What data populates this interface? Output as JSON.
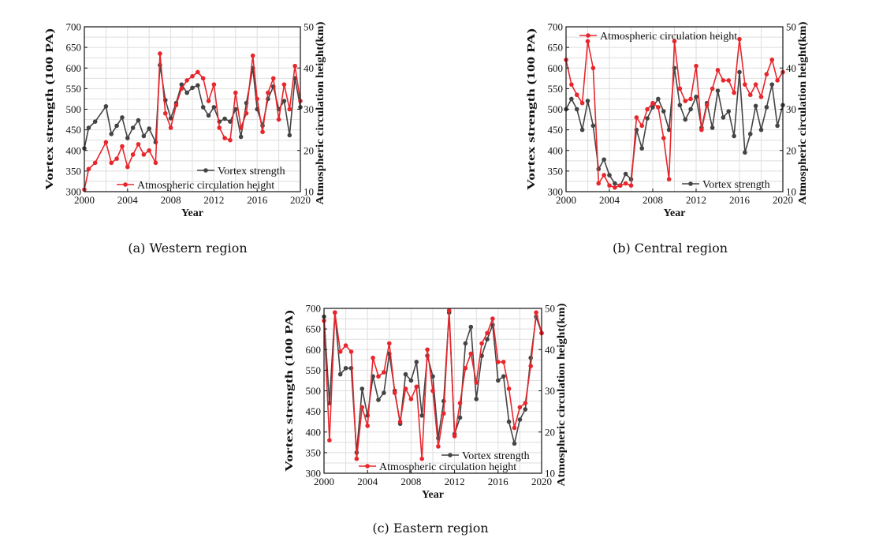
{
  "colors": {
    "vortex": "#444444",
    "circulation": "#e8262c",
    "grid": "#dedede",
    "axis": "#111111"
  },
  "chart_data": [
    {
      "type": "line",
      "caption": "(a) Western region",
      "xlabel": "Year",
      "ylabel_left": "Vortex strength (100 PA)",
      "ylabel_right": "Atmospheric circulation height(km)",
      "xlim": [
        2000,
        2020
      ],
      "ylim_left": [
        300,
        700
      ],
      "ylim_right": [
        10,
        50
      ],
      "x_ticks": [
        "2000",
        "2004",
        "2008",
        "2012",
        "2016",
        "2020"
      ],
      "y_left_ticks": [
        "300",
        "350",
        "400",
        "450",
        "500",
        "550",
        "600",
        "650",
        "700"
      ],
      "y_right_ticks": [
        "10",
        "20",
        "30",
        "40",
        "50"
      ],
      "legend_position": "bottom-right",
      "legend_order": [
        "Vortex strength",
        "Atmospheric circulation height"
      ],
      "series": [
        {
          "name": "Vortex strength",
          "axis": "left",
          "x": [
            2000,
            2000.4,
            2001,
            2002,
            2002.5,
            2003,
            2003.5,
            2004,
            2004.5,
            2005,
            2005.5,
            2006,
            2006.6,
            2007,
            2007.5,
            2008,
            2008.5,
            2009,
            2009.5,
            2010,
            2010.5,
            2011,
            2011.5,
            2012,
            2012.5,
            2013,
            2013.5,
            2014,
            2014.5,
            2015,
            2015.6,
            2016,
            2016.5,
            2017,
            2017.5,
            2018,
            2018.5,
            2019,
            2019.5,
            2020
          ],
          "values": [
            405,
            455,
            470,
            507,
            440,
            460,
            480,
            430,
            455,
            473,
            435,
            453,
            420,
            607,
            522,
            478,
            515,
            560,
            540,
            552,
            558,
            505,
            485,
            505,
            470,
            477,
            470,
            500,
            433,
            515,
            600,
            500,
            460,
            525,
            555,
            500,
            520,
            437,
            575,
            505
          ]
        },
        {
          "name": "Atmospheric circulation height",
          "axis": "right",
          "x": [
            2000,
            2000.4,
            2001,
            2002,
            2002.5,
            2003,
            2003.5,
            2004,
            2004.5,
            2005,
            2005.5,
            2006,
            2006.6,
            2007,
            2007.5,
            2008,
            2008.5,
            2009,
            2009.5,
            2010,
            2010.5,
            2011,
            2011.5,
            2012,
            2012.5,
            2013,
            2013.5,
            2014,
            2014.5,
            2015,
            2015.6,
            2016,
            2016.5,
            2017,
            2017.5,
            2018,
            2018.5,
            2019,
            2019.5,
            2020
          ],
          "values": [
            10.5,
            15.5,
            17,
            22,
            17,
            18,
            21,
            16,
            19,
            21.5,
            19,
            20,
            17,
            43.5,
            29,
            25.5,
            31,
            35,
            37,
            38,
            39,
            37.5,
            32,
            36,
            25.5,
            23,
            22.5,
            34,
            25.5,
            29,
            43,
            32.5,
            24.5,
            34,
            37.5,
            27.5,
            36,
            30,
            40.5,
            32
          ]
        }
      ]
    },
    {
      "type": "line",
      "caption": "(b) Central region",
      "xlabel": "Year",
      "ylabel_left": "Vortex strength (100 PA)",
      "ylabel_right": "Atmospheric circulation height(km)",
      "xlim": [
        2000,
        2020
      ],
      "ylim_left": [
        300,
        700
      ],
      "ylim_right": [
        10,
        50
      ],
      "x_ticks": [
        "2000",
        "2004",
        "2008",
        "2012",
        "2016",
        "2020"
      ],
      "y_left_ticks": [
        "300",
        "350",
        "400",
        "450",
        "500",
        "550",
        "600",
        "650",
        "700"
      ],
      "y_right_ticks": [
        "10",
        "20",
        "30",
        "40",
        "50"
      ],
      "legend_position": "top-left and bottom-right",
      "legend_order": [
        "Atmospheric circulation height",
        "Vortex strength"
      ],
      "series": [
        {
          "name": "Vortex strength",
          "axis": "left",
          "x": [
            2000,
            2000.5,
            2001,
            2001.5,
            2002,
            2002.5,
            2003,
            2003.5,
            2004,
            2004.5,
            2005,
            2005.5,
            2006,
            2006.5,
            2007,
            2007.5,
            2008,
            2008.5,
            2009,
            2009.5,
            2010,
            2010.5,
            2011,
            2011.5,
            2012,
            2012.5,
            2013,
            2013.5,
            2014,
            2014.5,
            2015,
            2015.5,
            2016,
            2016.5,
            2017,
            2017.5,
            2018,
            2018.5,
            2019,
            2019.5,
            2020
          ],
          "values": [
            500,
            525,
            500,
            450,
            520,
            460,
            355,
            378,
            340,
            320,
            315,
            343,
            330,
            450,
            405,
            478,
            505,
            525,
            495,
            450,
            600,
            510,
            475,
            500,
            530,
            455,
            515,
            455,
            545,
            480,
            495,
            435,
            590,
            395,
            440,
            508,
            450,
            505,
            560,
            460,
            510
          ]
        },
        {
          "name": "Atmospheric circulation height",
          "axis": "right",
          "x": [
            2000,
            2000.5,
            2001,
            2001.5,
            2002,
            2002.5,
            2003,
            2003.5,
            2004,
            2004.5,
            2005,
            2005.5,
            2006,
            2006.5,
            2007,
            2007.5,
            2008,
            2008.5,
            2009,
            2009.5,
            2010,
            2010.5,
            2011,
            2011.5,
            2012,
            2012.5,
            2013,
            2013.5,
            2014,
            2014.5,
            2015,
            2015.5,
            2016,
            2016.5,
            2017,
            2017.5,
            2018,
            2018.5,
            2019,
            2019.5,
            2020
          ],
          "values": [
            42,
            36,
            33.5,
            31.5,
            46.5,
            40,
            12,
            14,
            11.5,
            11,
            11.5,
            12,
            11.5,
            28,
            26,
            30,
            31.5,
            30.5,
            23,
            13,
            46.5,
            35,
            32,
            32.5,
            40.5,
            25,
            31,
            35,
            39.5,
            37,
            37,
            34,
            47,
            36,
            33.5,
            36,
            33,
            38.5,
            42,
            37,
            39
          ]
        }
      ]
    },
    {
      "type": "line",
      "caption": "(c) Eastern region",
      "xlabel": "Year",
      "ylabel_left": "Vortex strength (100 PA)",
      "ylabel_right": "Atmospheric circulation height(km)",
      "xlim": [
        2000,
        2020
      ],
      "ylim_left": [
        300,
        700
      ],
      "ylim_right": [
        10,
        50
      ],
      "x_ticks": [
        "2000",
        "2004",
        "2008",
        "2012",
        "2016",
        "2020"
      ],
      "y_left_ticks": [
        "300",
        "350",
        "400",
        "450",
        "500",
        "550",
        "600",
        "650",
        "700"
      ],
      "y_right_ticks": [
        "10",
        "20",
        "30",
        "40",
        "50"
      ],
      "legend_position": "bottom-right",
      "legend_order": [
        "Vortex strength",
        "Atmospheric circulation height"
      ],
      "series": [
        {
          "name": "Vortex strength",
          "axis": "left",
          "x": [
            2000,
            2000.5,
            2001,
            2001.5,
            2002,
            2002.5,
            2003,
            2003.5,
            2004,
            2004.5,
            2005,
            2005.5,
            2006,
            2006.5,
            2007,
            2007.5,
            2008,
            2008.5,
            2009,
            2009.5,
            2010,
            2010.5,
            2011,
            2011.5,
            2012,
            2012.5,
            2013,
            2013.5,
            2014,
            2014.5,
            2015,
            2015.5,
            2016,
            2016.5,
            2017,
            2017.5,
            2018,
            2018.5,
            2019,
            2019.5,
            2020
          ],
          "values": [
            680,
            470,
            690,
            540,
            555,
            555,
            350,
            505,
            440,
            535,
            478,
            495,
            590,
            500,
            420,
            540,
            525,
            570,
            440,
            585,
            535,
            385,
            475,
            690,
            395,
            435,
            615,
            655,
            480,
            585,
            625,
            660,
            525,
            535,
            425,
            372,
            430,
            455,
            580,
            680,
            640
          ]
        },
        {
          "name": "Atmospheric circulation height",
          "axis": "right",
          "x": [
            2000,
            2000.5,
            2001,
            2001.5,
            2002,
            2002.5,
            2003,
            2003.5,
            2004,
            2004.5,
            2005,
            2005.5,
            2006,
            2006.5,
            2007,
            2007.5,
            2008,
            2008.5,
            2009,
            2009.5,
            2010,
            2010.5,
            2011,
            2011.5,
            2012,
            2012.5,
            2013,
            2013.5,
            2014,
            2014.5,
            2015,
            2015.5,
            2016,
            2016.5,
            2017,
            2017.5,
            2018,
            2018.5,
            2019,
            2019.5,
            2020
          ],
          "values": [
            47,
            18,
            49,
            39.5,
            41,
            39.5,
            13.5,
            26,
            21.5,
            38,
            33.5,
            34.5,
            41.5,
            29.5,
            22.5,
            30.5,
            28,
            31,
            13.5,
            40,
            30,
            16.5,
            24.5,
            49.5,
            19,
            27,
            35.5,
            39,
            32,
            41.5,
            44,
            47.5,
            37,
            37,
            30.5,
            21,
            26,
            27,
            36,
            49,
            44
          ]
        }
      ]
    }
  ]
}
